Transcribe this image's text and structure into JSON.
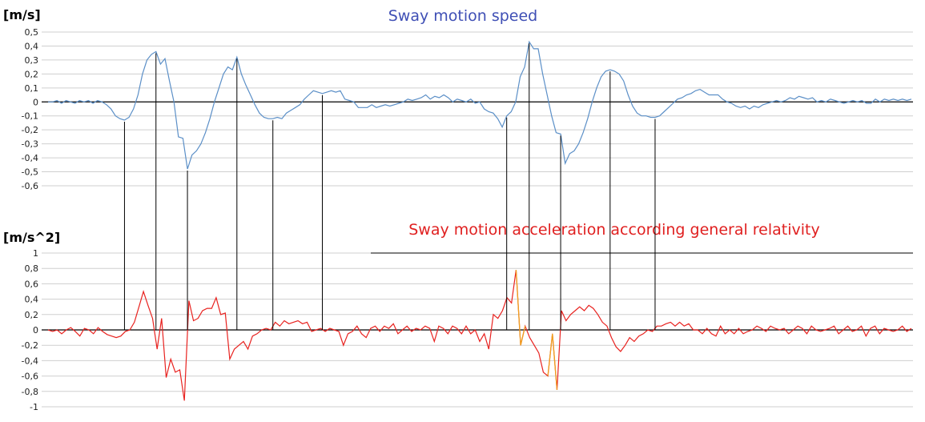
{
  "chart_data": [
    {
      "type": "line",
      "title": "Sway motion speed",
      "ylabel": "[m/s]",
      "xlabel": "",
      "ylim": [
        -0.6,
        0.5
      ],
      "yticks": [
        "0,5",
        "0,4",
        "0,3",
        "0,2",
        "0,1",
        "0",
        "-0,1",
        "-0,2",
        "-0,3",
        "-0,4",
        "-0,5",
        "-0,6"
      ],
      "grid": true,
      "color": "#5b8fc7",
      "series": [
        {
          "values": [
            0,
            0,
            0.01,
            -0.01,
            0.01,
            0,
            -0.01,
            0.01,
            0,
            0.01,
            -0.01,
            0.01,
            0,
            -0.02,
            -0.05,
            -0.1,
            -0.12,
            -0.13,
            -0.11,
            -0.05,
            0.05,
            0.2,
            0.3,
            0.34,
            0.36,
            0.27,
            0.31,
            0.15,
            0,
            -0.25,
            -0.26,
            -0.48,
            -0.38,
            -0.35,
            -0.3,
            -0.22,
            -0.12,
            0,
            0.1,
            0.2,
            0.25,
            0.23,
            0.32,
            0.2,
            0.12,
            0.05,
            -0.02,
            -0.08,
            -0.11,
            -0.12,
            -0.12,
            -0.11,
            -0.12,
            -0.08,
            -0.06,
            -0.04,
            -0.02,
            0.02,
            0.05,
            0.08,
            0.07,
            0.06,
            0.07,
            0.08,
            0.07,
            0.08,
            0.02,
            0.01,
            0,
            -0.04,
            -0.04,
            -0.04,
            -0.02,
            -0.04,
            -0.03,
            -0.02,
            -0.03,
            -0.02,
            -0.01,
            0,
            0.02,
            0.01,
            0.02,
            0.03,
            0.05,
            0.02,
            0.04,
            0.03,
            0.05,
            0.03,
            0,
            0.02,
            0.01,
            0,
            0.02,
            -0.01,
            0,
            -0.05,
            -0.07,
            -0.08,
            -0.12,
            -0.18,
            -0.1,
            -0.07,
            0,
            0.18,
            0.25,
            0.43,
            0.38,
            0.38,
            0.2,
            0.05,
            -0.1,
            -0.22,
            -0.23,
            -0.44,
            -0.37,
            -0.35,
            -0.3,
            -0.22,
            -0.12,
            0,
            0.1,
            0.18,
            0.22,
            0.23,
            0.22,
            0.2,
            0.15,
            0.05,
            -0.03,
            -0.08,
            -0.1,
            -0.1,
            -0.11,
            -0.11,
            -0.1,
            -0.07,
            -0.04,
            -0.01,
            0.02,
            0.03,
            0.05,
            0.06,
            0.08,
            0.09,
            0.07,
            0.05,
            0.05,
            0.05,
            0.02,
            0,
            -0.01,
            -0.03,
            -0.04,
            -0.03,
            -0.05,
            -0.03,
            -0.04,
            -0.02,
            -0.01,
            0,
            0.01,
            0,
            0.01,
            0.03,
            0.02,
            0.04,
            0.03,
            0.02,
            0.03,
            0,
            0.01,
            0,
            0.02,
            0.01,
            0,
            -0.01,
            0,
            0.01,
            0,
            0.01,
            -0.01,
            -0.01,
            0.02,
            0,
            0.02,
            0.01,
            0.02,
            0.01,
            0.02,
            0.01,
            0.02
          ]
        }
      ]
    },
    {
      "type": "line",
      "title": "Sway motion acceleration according general relativity",
      "ylabel": "[m/s^2]",
      "xlabel": "",
      "ylim": [
        -1,
        1
      ],
      "yticks": [
        "1",
        "0,8",
        "0,6",
        "0,4",
        "0,2",
        "0",
        "-0,2",
        "-0,4",
        "-0,6",
        "-0,8",
        "-1"
      ],
      "grid": true,
      "color": "#e8221f",
      "highlight_color": "#f0a020",
      "series": [
        {
          "values": [
            0,
            -0.02,
            0,
            -0.05,
            0,
            0.03,
            -0.02,
            -0.08,
            0.02,
            0,
            -0.05,
            0.03,
            -0.02,
            -0.06,
            -0.08,
            -0.1,
            -0.08,
            -0.02,
            0,
            0.1,
            0.3,
            0.5,
            0.32,
            0.15,
            -0.25,
            0.15,
            -0.62,
            -0.38,
            -0.55,
            -0.52,
            -0.92,
            0.38,
            0.12,
            0.15,
            0.25,
            0.28,
            0.28,
            0.42,
            0.2,
            0.22,
            -0.38,
            -0.25,
            -0.2,
            -0.15,
            -0.25,
            -0.08,
            -0.05,
            0,
            0.02,
            0,
            0.1,
            0.05,
            0.12,
            0.08,
            0.1,
            0.12,
            0.08,
            0.1,
            -0.02,
            0,
            0.02,
            -0.02,
            0.02,
            0,
            -0.02,
            -0.2,
            -0.05,
            -0.02,
            0.05,
            -0.05,
            -0.1,
            0.02,
            0.05,
            -0.02,
            0.05,
            0.02,
            0.08,
            -0.05,
            0,
            0.05,
            -0.02,
            0.02,
            0,
            0.05,
            0.02,
            -0.15,
            0.05,
            0.02,
            -0.05,
            0.05,
            0.02,
            -0.05,
            0.05,
            -0.05,
            0,
            -0.15,
            -0.05,
            -0.25,
            0.2,
            0.15,
            0.25,
            0.42,
            0.35,
            0.78,
            -0.2,
            0.05,
            -0.1,
            -0.2,
            -0.3,
            -0.55,
            -0.6,
            -0.05,
            -0.78,
            0.25,
            0.12,
            0.2,
            0.25,
            0.3,
            0.25,
            0.32,
            0.28,
            0.2,
            0.1,
            0.05,
            -0.1,
            -0.22,
            -0.28,
            -0.2,
            -0.1,
            -0.15,
            -0.08,
            -0.05,
            0,
            -0.02,
            0.05,
            0.05,
            0.08,
            0.1,
            0.05,
            0.1,
            0.05,
            0.08,
            0,
            0,
            -0.05,
            0.02,
            -0.05,
            -0.08,
            0.05,
            -0.05,
            0,
            -0.05,
            0.02,
            -0.05,
            -0.02,
            0,
            0.05,
            0.02,
            -0.02,
            0.05,
            0.02,
            0,
            0.02,
            -0.05,
            0,
            0.05,
            0.02,
            -0.05,
            0.05,
            0,
            -0.02,
            0,
            0.02,
            0.05,
            -0.05,
            0,
            0.05,
            -0.02,
            0,
            0.05,
            -0.08,
            0.02,
            0.05,
            -0.05,
            0.02,
            0,
            -0.02,
            0,
            0.05,
            -0.02,
            0.02
          ]
        }
      ]
    }
  ]
}
